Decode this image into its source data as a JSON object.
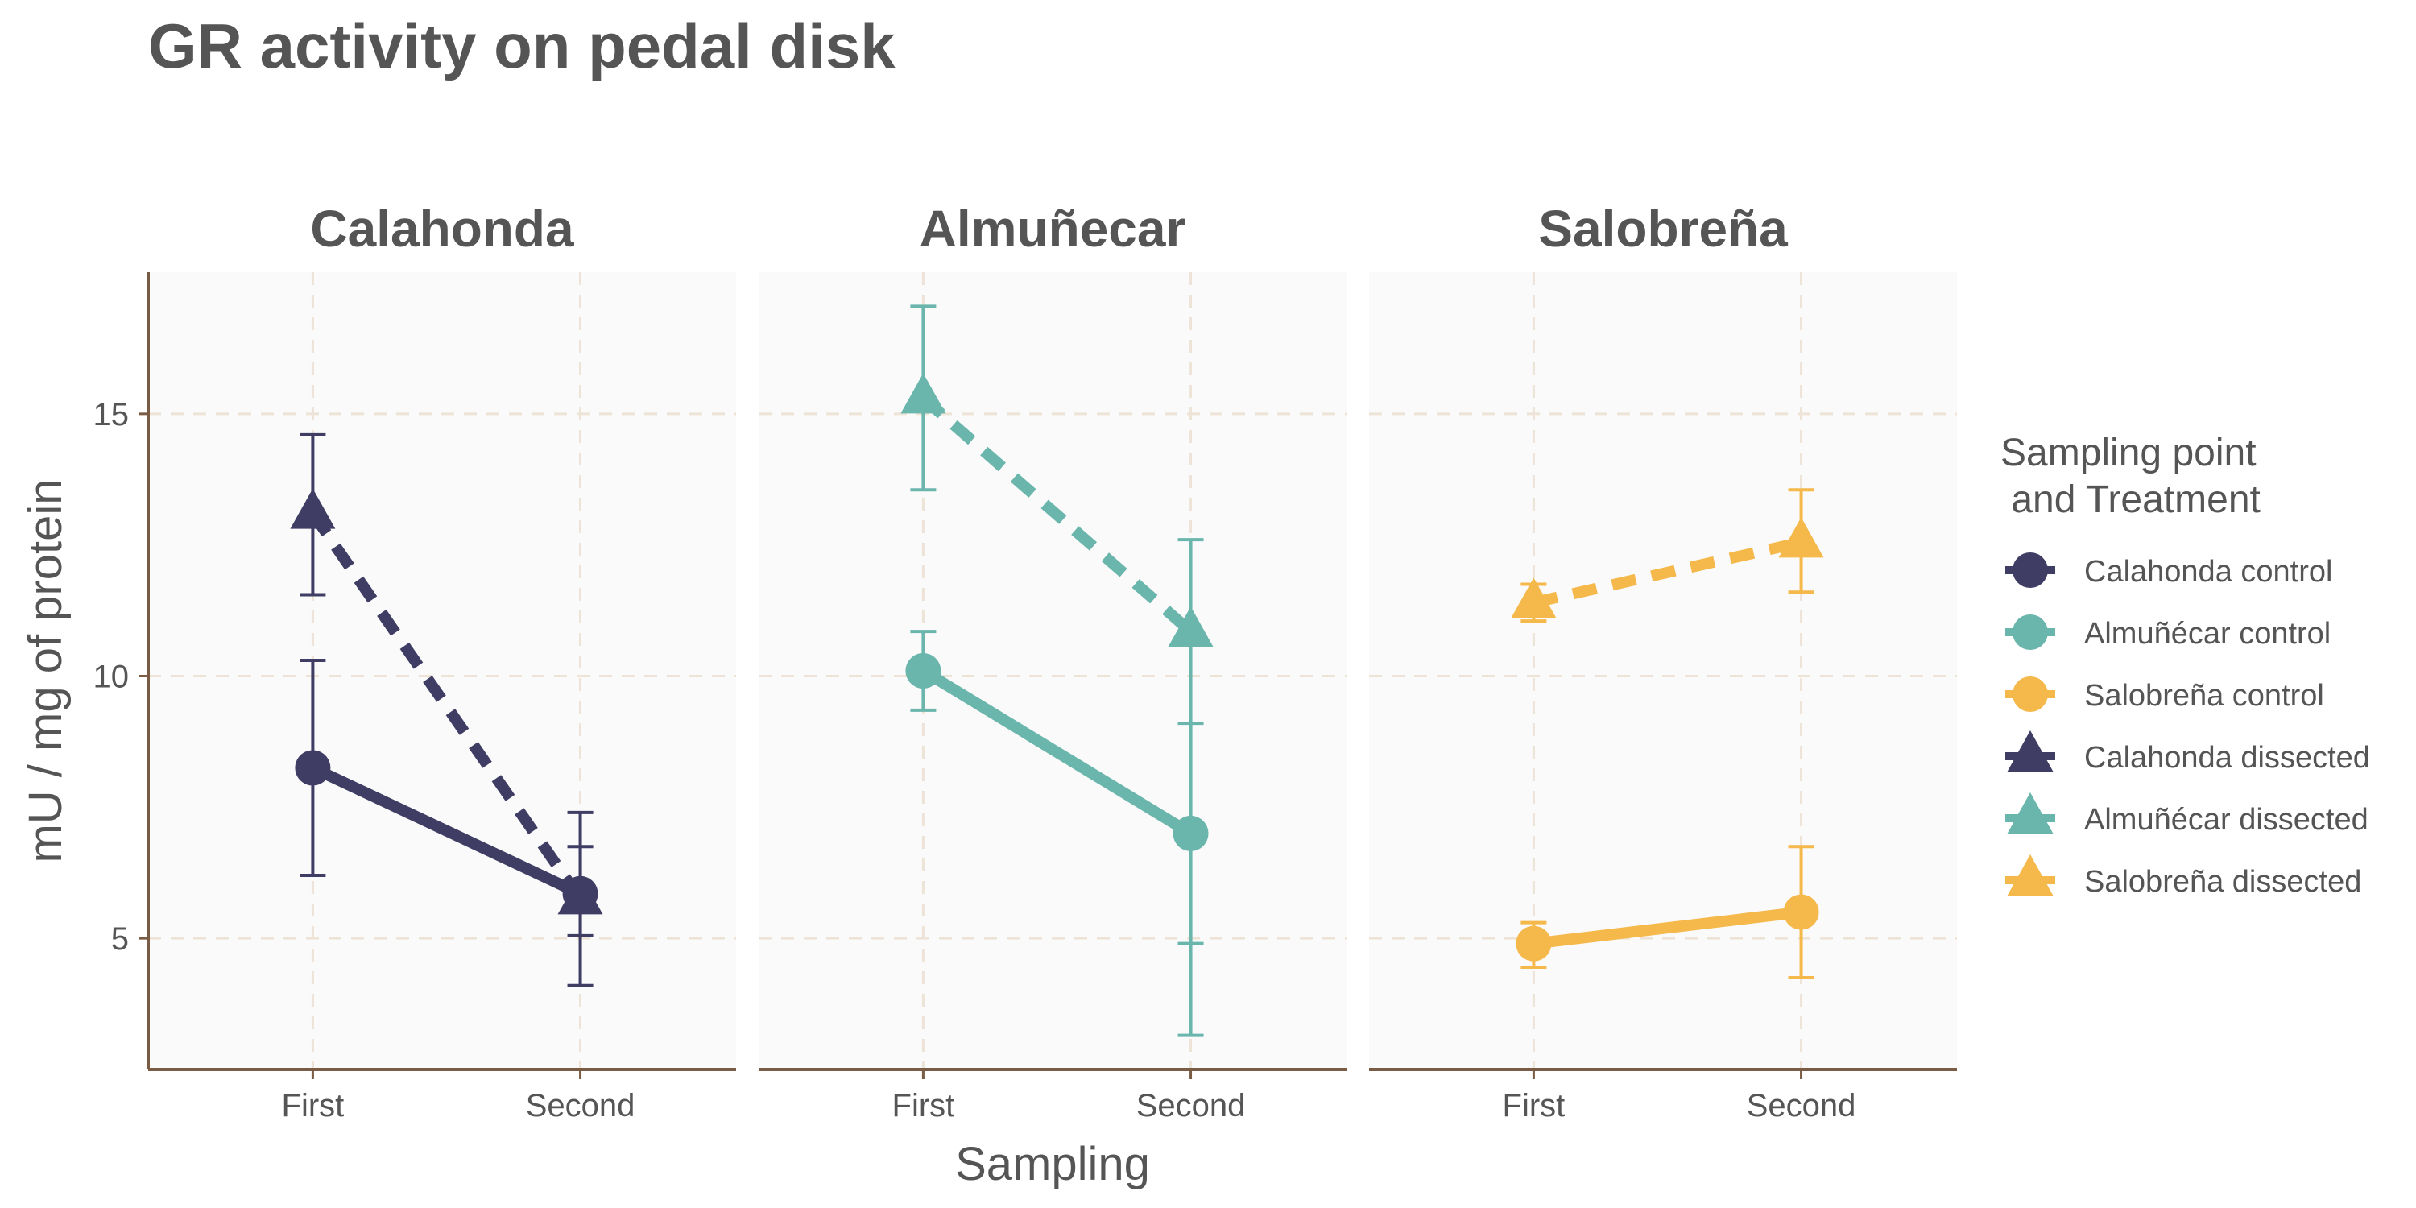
{
  "chart_data": {
    "type": "line",
    "title": "GR activity on pedal disk",
    "xlabel": "Sampling",
    "ylabel": "mU / mg  of protein",
    "categories": [
      "First",
      "Second"
    ],
    "ylim": [
      2.5,
      17.7
    ],
    "yticks": [
      5,
      10,
      15
    ],
    "grid": true,
    "legend_title_lines": [
      "Sampling point",
      " and Treatment"
    ],
    "legend_position": "right",
    "panels": [
      {
        "title": "Calahonda",
        "color": "#3f3d64",
        "series": [
          {
            "name": "Calahonda control",
            "treatment": "control",
            "shape": "circle",
            "line": "solid",
            "values": [
              8.25,
              5.85
            ],
            "lower": [
              6.2,
              5.05
            ],
            "upper": [
              10.3,
              6.75
            ]
          },
          {
            "name": "Calahonda dissected",
            "treatment": "dissected",
            "shape": "triangle",
            "line": "dashed",
            "values": [
              13.1,
              5.75
            ],
            "lower": [
              11.55,
              4.1
            ],
            "upper": [
              14.6,
              7.4
            ]
          }
        ]
      },
      {
        "title": "Almuñecar",
        "color": "#6ab6ac",
        "series": [
          {
            "name": "Almuñécar control",
            "treatment": "control",
            "shape": "circle",
            "line": "solid",
            "values": [
              10.1,
              7.0
            ],
            "lower": [
              9.35,
              4.9
            ],
            "upper": [
              10.85,
              9.1
            ]
          },
          {
            "name": "Almuñécar dissected",
            "treatment": "dissected",
            "shape": "triangle",
            "line": "dashed",
            "values": [
              15.3,
              10.85
            ],
            "lower": [
              13.55,
              3.15
            ],
            "upper": [
              17.05,
              12.6
            ]
          }
        ]
      },
      {
        "title": "Salobreña",
        "color": "#f5b84a",
        "series": [
          {
            "name": "Salobreña control",
            "treatment": "control",
            "shape": "circle",
            "line": "solid",
            "values": [
              4.9,
              5.5
            ],
            "lower": [
              4.45,
              4.25
            ],
            "upper": [
              5.3,
              6.75
            ]
          },
          {
            "name": "Salobreña dissected",
            "treatment": "dissected",
            "shape": "triangle",
            "line": "dashed",
            "values": [
              11.4,
              12.55
            ],
            "lower": [
              11.05,
              11.6
            ],
            "upper": [
              11.75,
              13.55
            ]
          }
        ]
      }
    ],
    "legend": [
      {
        "label": "Calahonda control",
        "shape": "circle",
        "color": "#3f3d64"
      },
      {
        "label": "Almuñécar control",
        "shape": "circle",
        "color": "#6ab6ac"
      },
      {
        "label": "Salobreña control",
        "shape": "circle",
        "color": "#f5b84a"
      },
      {
        "label": "Calahonda dissected",
        "shape": "triangle",
        "color": "#3f3d64"
      },
      {
        "label": "Almuñécar dissected",
        "shape": "triangle",
        "color": "#6ab6ac"
      },
      {
        "label": "Salobreña dissected",
        "shape": "triangle",
        "color": "#f5b84a"
      }
    ],
    "colors": {
      "panel_bg": "#fafafa",
      "grid": "#ede3d6",
      "axis": "#7a5c44",
      "text": "#555555"
    }
  }
}
